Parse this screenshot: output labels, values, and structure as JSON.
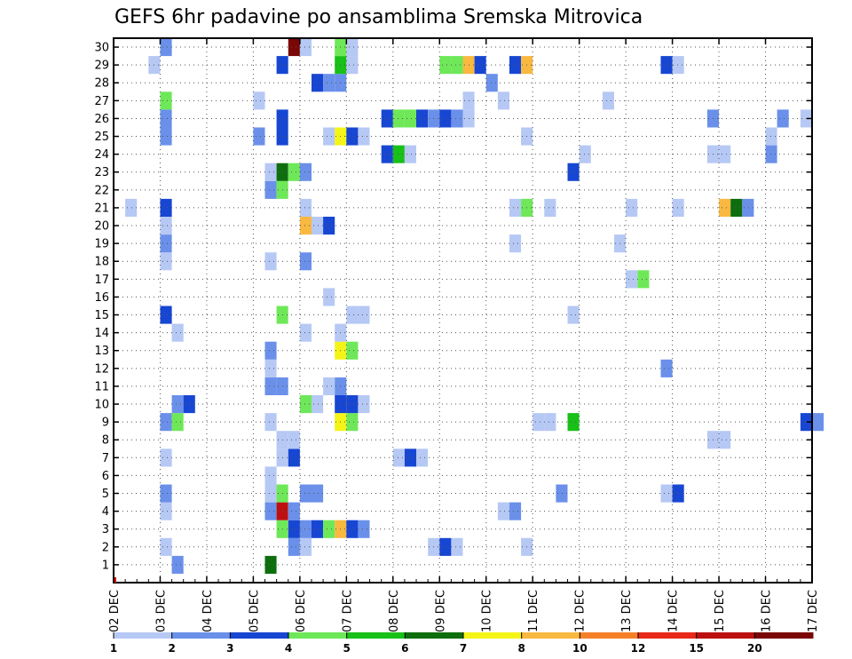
{
  "chart_data": {
    "type": "heatmap",
    "title": "GEFS 6hr padavine po ansamblima Sremska Mitrovica",
    "xlabel": "",
    "ylabel": "",
    "x_ticks": [
      "02 DEC",
      "03 DEC",
      "04 DEC",
      "05 DEC",
      "06 DEC",
      "07 DEC",
      "08 DEC",
      "09 DEC",
      "10 DEC",
      "11 DEC",
      "12 DEC",
      "13 DEC",
      "14 DEC",
      "15 DEC",
      "16 DEC",
      "17 DEC"
    ],
    "y_ticks": [
      1,
      2,
      3,
      4,
      5,
      6,
      7,
      8,
      9,
      10,
      11,
      12,
      13,
      14,
      15,
      16,
      17,
      18,
      19,
      20,
      21,
      22,
      23,
      24,
      25,
      26,
      27,
      28,
      29,
      30
    ],
    "grid": true,
    "colorbar": {
      "labels": [
        "1",
        "2",
        "3",
        "4",
        "5",
        "6",
        "7",
        "8",
        "10",
        "12",
        "15",
        "20"
      ],
      "colors": [
        "#b6c8f4",
        "#6a90ea",
        "#1746d2",
        "#6ee858",
        "#18c018",
        "#0e6e0e",
        "#f4f418",
        "#f9b840",
        "#f68028",
        "#e82818",
        "#bc1010",
        "#7a0606"
      ]
    },
    "cells_note": "each cell: [day (fractional, 2 = 02 DEC 00z), member 1-30, color class 1-12]",
    "cells": [
      [
        3.25,
        1,
        2
      ],
      [
        5.25,
        1,
        6
      ],
      [
        3.0,
        2,
        1
      ],
      [
        5.75,
        2,
        2
      ],
      [
        6.0,
        2,
        1
      ],
      [
        8.75,
        2,
        1
      ],
      [
        9.0,
        2,
        3
      ],
      [
        9.25,
        2,
        1
      ],
      [
        10.75,
        2,
        1
      ],
      [
        5.5,
        3,
        4
      ],
      [
        5.75,
        3,
        3
      ],
      [
        6.0,
        3,
        2
      ],
      [
        6.25,
        3,
        3
      ],
      [
        6.5,
        3,
        4
      ],
      [
        6.75,
        3,
        8
      ],
      [
        7.0,
        3,
        3
      ],
      [
        7.25,
        3,
        2
      ],
      [
        3.0,
        4,
        1
      ],
      [
        5.25,
        4,
        2
      ],
      [
        5.5,
        4,
        11
      ],
      [
        5.75,
        4,
        2
      ],
      [
        10.25,
        4,
        1
      ],
      [
        10.5,
        4,
        2
      ],
      [
        3.0,
        5,
        2
      ],
      [
        5.25,
        5,
        1
      ],
      [
        5.5,
        5,
        4
      ],
      [
        6.0,
        5,
        2
      ],
      [
        6.25,
        5,
        2
      ],
      [
        11.5,
        5,
        2
      ],
      [
        13.75,
        5,
        1
      ],
      [
        14.0,
        5,
        3
      ],
      [
        5.25,
        6,
        1
      ],
      [
        3.0,
        7,
        1
      ],
      [
        5.5,
        7,
        1
      ],
      [
        5.75,
        7,
        3
      ],
      [
        8.0,
        7,
        1
      ],
      [
        8.25,
        7,
        3
      ],
      [
        8.5,
        7,
        1
      ],
      [
        5.5,
        8,
        1
      ],
      [
        5.75,
        8,
        1
      ],
      [
        14.75,
        8,
        1
      ],
      [
        15.0,
        8,
        1
      ],
      [
        3.0,
        9,
        2
      ],
      [
        3.25,
        9,
        4
      ],
      [
        5.25,
        9,
        1
      ],
      [
        6.75,
        9,
        7
      ],
      [
        7.0,
        9,
        4
      ],
      [
        11.0,
        9,
        1
      ],
      [
        11.25,
        9,
        1
      ],
      [
        11.75,
        9,
        5
      ],
      [
        16.75,
        9,
        3
      ],
      [
        17.0,
        9,
        2
      ],
      [
        3.25,
        10,
        2
      ],
      [
        3.5,
        10,
        3
      ],
      [
        6.0,
        10,
        4
      ],
      [
        6.25,
        10,
        1
      ],
      [
        6.75,
        10,
        3
      ],
      [
        7.0,
        10,
        3
      ],
      [
        7.25,
        10,
        1
      ],
      [
        5.25,
        11,
        2
      ],
      [
        5.5,
        11,
        2
      ],
      [
        6.5,
        11,
        1
      ],
      [
        6.75,
        11,
        2
      ],
      [
        5.25,
        12,
        1
      ],
      [
        13.75,
        12,
        2
      ],
      [
        5.25,
        13,
        2
      ],
      [
        6.75,
        13,
        7
      ],
      [
        7.0,
        13,
        4
      ],
      [
        3.25,
        14,
        1
      ],
      [
        6.0,
        14,
        1
      ],
      [
        6.75,
        14,
        1
      ],
      [
        3.0,
        15,
        3
      ],
      [
        5.5,
        15,
        4
      ],
      [
        7.0,
        15,
        1
      ],
      [
        7.25,
        15,
        1
      ],
      [
        11.75,
        15,
        1
      ],
      [
        6.5,
        16,
        1
      ],
      [
        13.0,
        17,
        1
      ],
      [
        13.25,
        17,
        4
      ],
      [
        3.0,
        18,
        1
      ],
      [
        5.25,
        18,
        1
      ],
      [
        6.0,
        18,
        2
      ],
      [
        3.0,
        19,
        2
      ],
      [
        10.5,
        19,
        1
      ],
      [
        12.75,
        19,
        1
      ],
      [
        3.0,
        20,
        1
      ],
      [
        6.0,
        20,
        8
      ],
      [
        6.25,
        20,
        1
      ],
      [
        6.5,
        20,
        3
      ],
      [
        2.25,
        21,
        1
      ],
      [
        3.0,
        21,
        3
      ],
      [
        6.0,
        21,
        1
      ],
      [
        10.5,
        21,
        1
      ],
      [
        10.75,
        21,
        4
      ],
      [
        11.25,
        21,
        1
      ],
      [
        13.0,
        21,
        1
      ],
      [
        14.0,
        21,
        1
      ],
      [
        15.0,
        21,
        8
      ],
      [
        15.25,
        21,
        6
      ],
      [
        15.5,
        21,
        2
      ],
      [
        5.25,
        22,
        2
      ],
      [
        5.5,
        22,
        4
      ],
      [
        5.25,
        23,
        1
      ],
      [
        5.5,
        23,
        6
      ],
      [
        5.75,
        23,
        4
      ],
      [
        6.0,
        23,
        2
      ],
      [
        11.75,
        23,
        3
      ],
      [
        7.75,
        24,
        3
      ],
      [
        8.0,
        24,
        5
      ],
      [
        8.25,
        24,
        1
      ],
      [
        12.0,
        24,
        1
      ],
      [
        14.75,
        24,
        1
      ],
      [
        15.0,
        24,
        1
      ],
      [
        16.0,
        24,
        2
      ],
      [
        3.0,
        25,
        2
      ],
      [
        5.0,
        25,
        2
      ],
      [
        5.5,
        25,
        3
      ],
      [
        6.5,
        25,
        1
      ],
      [
        6.75,
        25,
        7
      ],
      [
        7.0,
        25,
        3
      ],
      [
        7.25,
        25,
        1
      ],
      [
        10.75,
        25,
        1
      ],
      [
        16.0,
        25,
        1
      ],
      [
        3.0,
        26,
        2
      ],
      [
        5.5,
        26,
        3
      ],
      [
        7.75,
        26,
        3
      ],
      [
        8.0,
        26,
        4
      ],
      [
        8.25,
        26,
        4
      ],
      [
        8.5,
        26,
        3
      ],
      [
        8.75,
        26,
        2
      ],
      [
        9.0,
        26,
        3
      ],
      [
        9.25,
        26,
        2
      ],
      [
        9.5,
        26,
        1
      ],
      [
        14.75,
        26,
        2
      ],
      [
        16.25,
        26,
        2
      ],
      [
        16.75,
        26,
        1
      ],
      [
        3.0,
        27,
        4
      ],
      [
        5.0,
        27,
        1
      ],
      [
        9.5,
        27,
        1
      ],
      [
        10.25,
        27,
        1
      ],
      [
        12.5,
        27,
        1
      ],
      [
        6.25,
        28,
        3
      ],
      [
        6.5,
        28,
        2
      ],
      [
        6.75,
        28,
        2
      ],
      [
        10.0,
        28,
        2
      ],
      [
        2.75,
        29,
        1
      ],
      [
        5.5,
        29,
        3
      ],
      [
        6.75,
        29,
        5
      ],
      [
        7.0,
        29,
        1
      ],
      [
        9.0,
        29,
        4
      ],
      [
        9.25,
        29,
        4
      ],
      [
        9.5,
        29,
        8
      ],
      [
        9.75,
        29,
        3
      ],
      [
        10.5,
        29,
        3
      ],
      [
        10.75,
        29,
        8
      ],
      [
        13.75,
        29,
        3
      ],
      [
        14.0,
        29,
        1
      ],
      [
        3.0,
        30,
        2
      ],
      [
        5.75,
        30,
        12
      ],
      [
        6.0,
        30,
        1
      ],
      [
        6.75,
        30,
        4
      ],
      [
        7.0,
        30,
        1
      ]
    ]
  }
}
